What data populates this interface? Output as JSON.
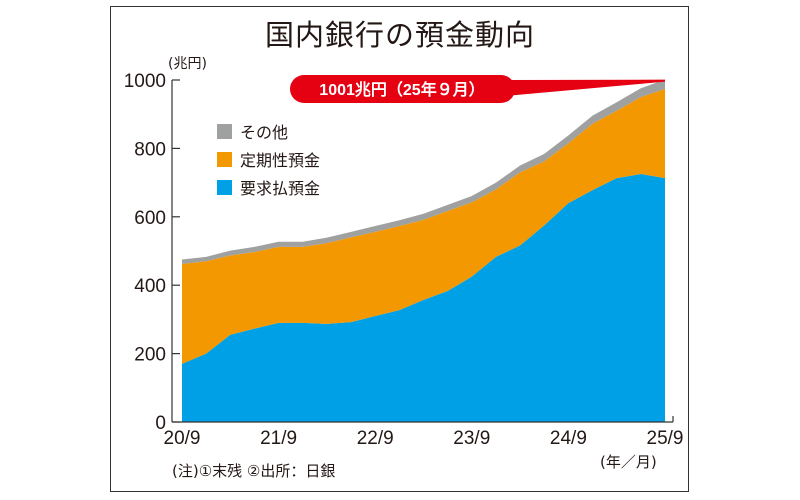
{
  "chart_data": {
    "type": "area",
    "stacked": true,
    "title": "国内銀行の預金動向",
    "ylabel": "(兆円)",
    "xlabel": "(年／月)",
    "ylim": [
      0,
      1000
    ],
    "yticks": [
      0,
      200,
      400,
      600,
      800,
      1000
    ],
    "xtick_labels": [
      "20/9",
      "21/9",
      "22/9",
      "23/9",
      "24/9",
      "25/9"
    ],
    "x": [
      "20/9",
      "20/12",
      "21/3",
      "21/6",
      "21/9",
      "21/12",
      "22/3",
      "22/6",
      "22/9",
      "22/12",
      "23/3",
      "23/6",
      "23/9",
      "23/12",
      "24/3",
      "24/6",
      "24/9",
      "24/12",
      "25/3",
      "25/6",
      "25/9"
    ],
    "grid": false,
    "legend_position": "top-left",
    "series": [
      {
        "name": "要求払預金",
        "color": "#00a0e6",
        "values": [
          170,
          200,
          255,
          273,
          290,
          290,
          287,
          292,
          310,
          327,
          357,
          383,
          425,
          483,
          516,
          575,
          640,
          678,
          713,
          725,
          713
        ]
      },
      {
        "name": "定期性預金",
        "color": "#f39800",
        "values": [
          292,
          270,
          232,
          224,
          222,
          222,
          236,
          248,
          246,
          246,
          234,
          234,
          217,
          197,
          214,
          187,
          175,
          194,
          197,
          225,
          261
        ]
      },
      {
        "name": "その他",
        "color": "#9fa0a0",
        "values": [
          13,
          13,
          14,
          15,
          15,
          15,
          16,
          16,
          17,
          17,
          18,
          18,
          19,
          20,
          20,
          22,
          23,
          24,
          25,
          26,
          27
        ]
      }
    ],
    "annotation": {
      "text": "1001兆円（25年９月）",
      "color": "#e50012",
      "target_x": "25/9",
      "target_value": 1001
    },
    "note": "(注)①末残 ②出所：日銀"
  }
}
